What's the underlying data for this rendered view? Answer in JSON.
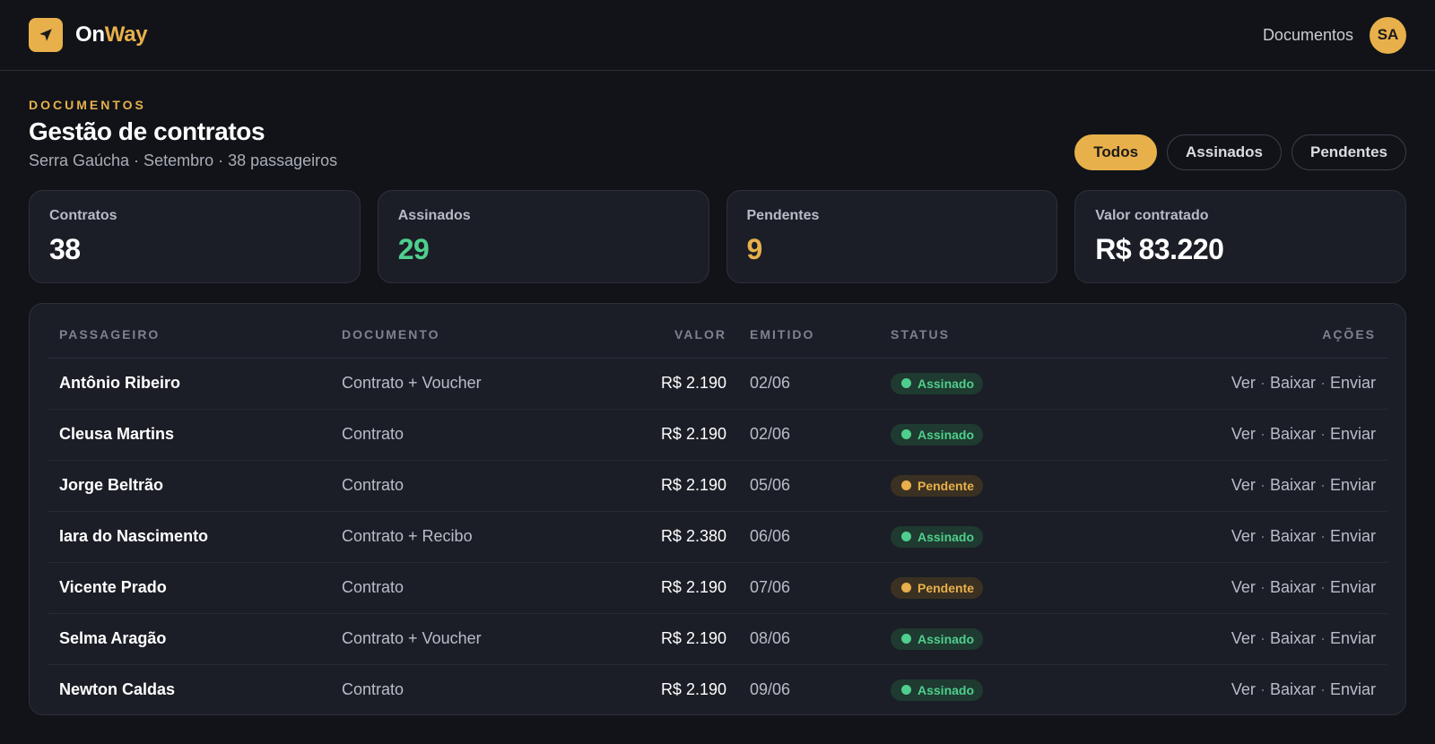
{
  "brand": {
    "name_part1": "On",
    "name_part2": "Way",
    "logo_icon": "navigation-arrow-icon"
  },
  "topbar": {
    "documents_link": "Documentos",
    "avatar_initials": "SA"
  },
  "page": {
    "eyebrow": "DOCUMENTOS",
    "title": "Gestão de contratos",
    "subtitle": "Serra Gaúcha · Setembro · 38 passageiros"
  },
  "filters": [
    {
      "label": "Todos",
      "active": true
    },
    {
      "label": "Assinados",
      "active": false
    },
    {
      "label": "Pendentes",
      "active": false
    }
  ],
  "stats": [
    {
      "label": "Contratos",
      "value": "38",
      "color": "#ffffff"
    },
    {
      "label": "Assinados",
      "value": "29",
      "color": "#4fcf8d"
    },
    {
      "label": "Pendentes",
      "value": "9",
      "color": "#e8b04b"
    },
    {
      "label": "Valor contratado",
      "value": "R$ 83.220",
      "color": "#ffffff"
    }
  ],
  "table": {
    "headers": {
      "passenger": "PASSAGEIRO",
      "document": "DOCUMENTO",
      "value": "VALOR",
      "issued": "EMITIDO",
      "status": "STATUS",
      "actions": "AÇÕES"
    },
    "actions": {
      "view": "Ver",
      "download": "Baixar",
      "send": "Enviar",
      "sep": "·"
    },
    "rows": [
      {
        "passenger": "Antônio Ribeiro",
        "document": "Contrato + Voucher",
        "value": "R$ 2.190",
        "issued": "02/06",
        "status": "Assinado",
        "kind": "ok"
      },
      {
        "passenger": "Cleusa Martins",
        "document": "Contrato",
        "value": "R$ 2.190",
        "issued": "02/06",
        "status": "Assinado",
        "kind": "ok"
      },
      {
        "passenger": "Jorge Beltrão",
        "document": "Contrato",
        "value": "R$ 2.190",
        "issued": "05/06",
        "status": "Pendente",
        "kind": "pend"
      },
      {
        "passenger": "Iara do Nascimento",
        "document": "Contrato + Recibo",
        "value": "R$ 2.380",
        "issued": "06/06",
        "status": "Assinado",
        "kind": "ok"
      },
      {
        "passenger": "Vicente Prado",
        "document": "Contrato",
        "value": "R$ 2.190",
        "issued": "07/06",
        "status": "Pendente",
        "kind": "pend"
      },
      {
        "passenger": "Selma Aragão",
        "document": "Contrato + Voucher",
        "value": "R$ 2.190",
        "issued": "08/06",
        "status": "Assinado",
        "kind": "ok"
      },
      {
        "passenger": "Newton Caldas",
        "document": "Contrato",
        "value": "R$ 2.190",
        "issued": "09/06",
        "status": "Assinado",
        "kind": "ok"
      }
    ]
  },
  "colors": {
    "accent": "#e8b04b",
    "signed": "#4fcf8d",
    "background": "#111318",
    "card": "#1b1e26"
  }
}
